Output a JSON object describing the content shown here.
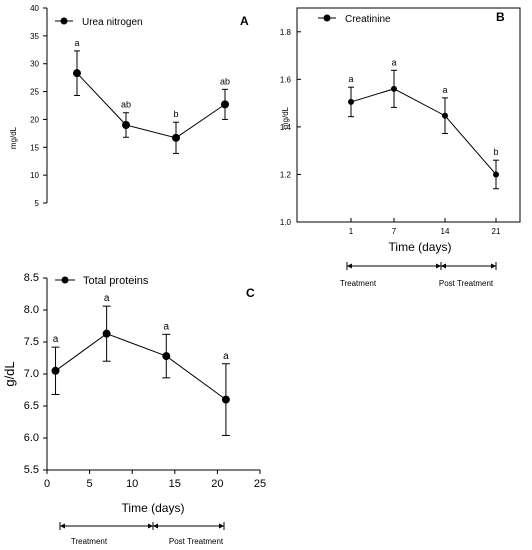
{
  "chart_data": [
    {
      "panel": "A",
      "type": "line",
      "ylabel": "mg/dL",
      "ylim": [
        5,
        40
      ],
      "yticks": [
        "5",
        "10",
        "15",
        "20",
        "25",
        "30",
        "35",
        "40"
      ],
      "x": [
        1,
        7,
        14,
        21
      ],
      "series": [
        {
          "name": "Urea nitrogen",
          "values": [
            28.3,
            19.0,
            16.7,
            22.7
          ],
          "errors": [
            4.0,
            2.2,
            2.8,
            2.7
          ],
          "letters": [
            "a",
            "ab",
            "b",
            "ab"
          ]
        }
      ],
      "legend_position": "top-left",
      "grid": false
    },
    {
      "panel": "B",
      "type": "line",
      "ylabel": "mg/dL",
      "xlabel": "Time (days)",
      "ylim": [
        1.0,
        1.9
      ],
      "yticks": [
        "1.0",
        "1.2",
        "1.4",
        "1.6",
        "1.8"
      ],
      "xticks": [
        "1",
        "7",
        "14",
        "21"
      ],
      "x": [
        1,
        7,
        14,
        21
      ],
      "series": [
        {
          "name": "Creatinine",
          "values": [
            1.505,
            1.56,
            1.447,
            1.2
          ],
          "errors": [
            0.062,
            0.078,
            0.075,
            0.06
          ],
          "letters": [
            "a",
            "a",
            "a",
            "b"
          ]
        }
      ],
      "phases": [
        "Treatment",
        "Post Treatment"
      ],
      "legend_position": "top-left",
      "grid": false
    },
    {
      "panel": "C",
      "type": "line",
      "ylabel": "g/dL",
      "xlabel": "Time (days)",
      "ylim": [
        5.5,
        8.5
      ],
      "xlim": [
        0,
        25
      ],
      "yticks": [
        "5.5",
        "6.0",
        "6.5",
        "7.0",
        "7.5",
        "8.0",
        "8.5"
      ],
      "xticks": [
        "0",
        "5",
        "10",
        "15",
        "20",
        "25"
      ],
      "x": [
        1,
        7,
        14,
        21
      ],
      "series": [
        {
          "name": "Total proteins",
          "values": [
            7.05,
            7.63,
            7.28,
            6.6
          ],
          "errors": [
            0.37,
            0.43,
            0.34,
            0.56
          ],
          "letters": [
            "a",
            "a",
            "a",
            "a"
          ]
        }
      ],
      "phases": [
        "Treatment",
        "Post Treatment"
      ],
      "legend_position": "top-left",
      "grid": false
    }
  ]
}
